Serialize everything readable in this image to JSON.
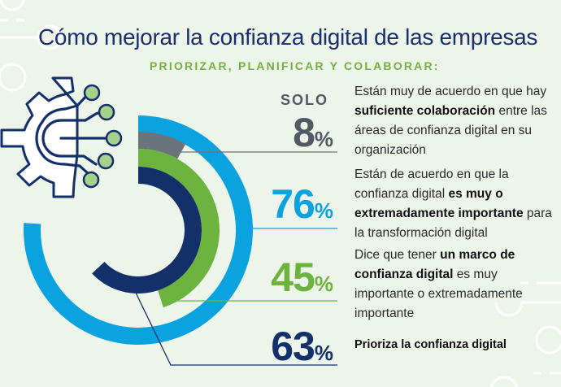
{
  "title": "Cómo mejorar la confianza digital de las empresas",
  "subtitle": "PRIORIZAR, PLANIFICAR Y COLABORAR:",
  "icon": "gear-circuit-icon",
  "colors": {
    "navy": "#13306b",
    "light_blue": "#0aa3e0",
    "green": "#6db33f",
    "gray": "#6b737b",
    "light_green_dot": "#a6d18b",
    "background": "#edf4ea"
  },
  "chart_data": {
    "type": "radial-bar",
    "title": "Cómo mejorar la confianza digital de las empresas",
    "subtitle": "PRIORIZAR, PLANIFICAR Y COLABORAR:",
    "unit": "%",
    "series": [
      {
        "name": "Están de acuerdo en que la confianza digital es muy o extremadamente importante para la transformación digital",
        "value": 76,
        "color": "#0aa3e0",
        "ring": "outer"
      },
      {
        "name": "Están muy de acuerdo en que hay suficiente colaboración entre las áreas de confianza digital en su organización",
        "value": 8,
        "color": "#6b737b",
        "ring": "second"
      },
      {
        "name": "Dice que tener un marco de confianza digital es muy importante o extremadamente importante",
        "value": 45,
        "color": "#6db33f",
        "ring": "third"
      },
      {
        "name": "Prioriza la confianza digital",
        "value": 63,
        "color": "#13306b",
        "ring": "inner"
      }
    ]
  },
  "stats": [
    {
      "prefix": "SOLO",
      "value": "8",
      "percent_sign": "%",
      "color": "#505a63",
      "desc_parts": [
        "Están muy de acuerdo en que hay ",
        "suficiente colaboración",
        " entre las áreas de confianza digital en su organización"
      ]
    },
    {
      "value": "76",
      "percent_sign": "%",
      "color": "#0aa3e0",
      "desc_parts": [
        "Están de acuerdo en que la confianza digital ",
        "es muy o extremadamente importante",
        " para la transformación digital"
      ]
    },
    {
      "value": "45",
      "percent_sign": "%",
      "color": "#6db33f",
      "desc_parts": [
        "Dice que tener ",
        "un marco de confianza digital",
        " es muy importante o extremadamente importante"
      ]
    },
    {
      "value": "63",
      "percent_sign": "%",
      "color": "#13306b",
      "desc_parts": [
        "Prioriza la confianza digital"
      ]
    }
  ]
}
